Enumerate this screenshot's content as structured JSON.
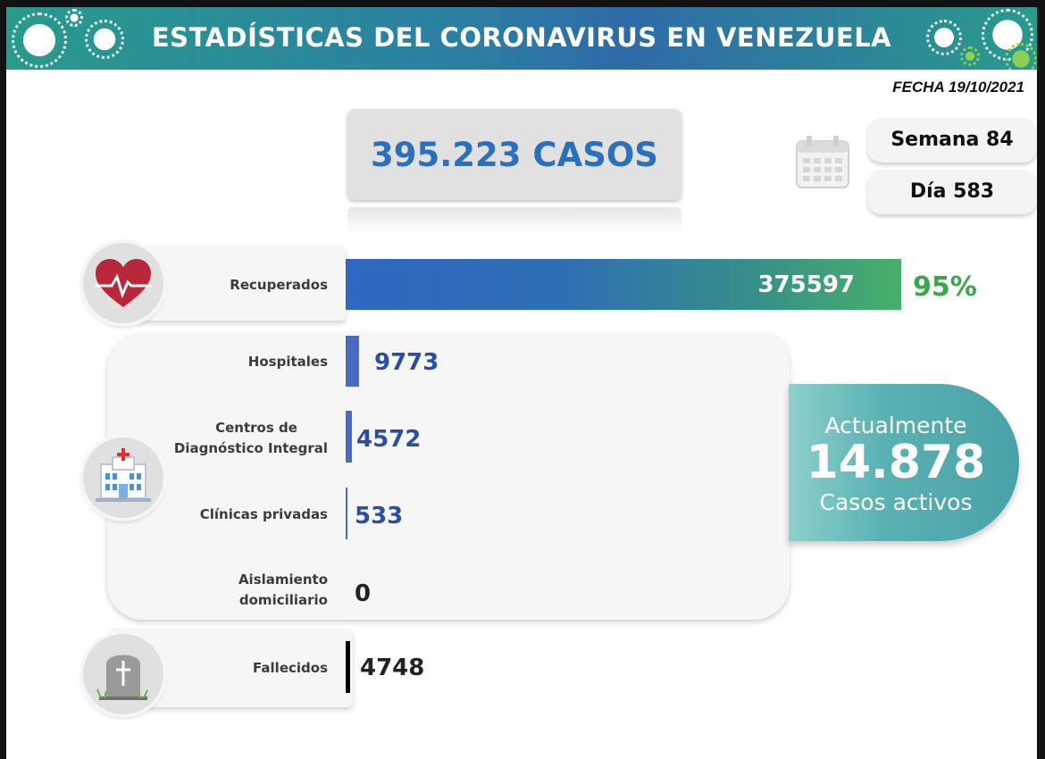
{
  "header": {
    "title": "ESTADÍSTICAS DEL CORONAVIRUS EN VENEZUELA"
  },
  "date": "FECHA 19/10/2021",
  "total_cases": "395.223 CASOS",
  "week": "Semana 84",
  "day": "Día 583",
  "recovered": {
    "label": "Recuperados",
    "value": "375597",
    "percent": "95%",
    "fraction": 0.95
  },
  "breakdown": [
    {
      "label": "Hospitales",
      "value": "9773",
      "number": 9773
    },
    {
      "label_lines": [
        "Centros de",
        "Diagnóstico Integral"
      ],
      "value": "4572",
      "number": 4572
    },
    {
      "label": "Clínicas privadas",
      "value": "533",
      "number": 533
    },
    {
      "label_lines": [
        "Aislamiento",
        "domiciliario"
      ],
      "value": "0",
      "number": 0
    }
  ],
  "deceased": {
    "label": "Fallecidos",
    "value": "4748",
    "number": 4748
  },
  "active": {
    "top": "Actualmente",
    "value": "14.878",
    "bottom": "Casos activos"
  },
  "icons": [
    "virus-icon",
    "calendar-icon",
    "heart-icon",
    "hospital-icon",
    "grave-icon"
  ],
  "colors": {
    "banner": "#2b7fa3",
    "total_text": "#2b6fbf",
    "bar_blue": "#4a6cc0",
    "recovered_pct": "#3ca64b",
    "active_badge": "#5ab2b4"
  }
}
